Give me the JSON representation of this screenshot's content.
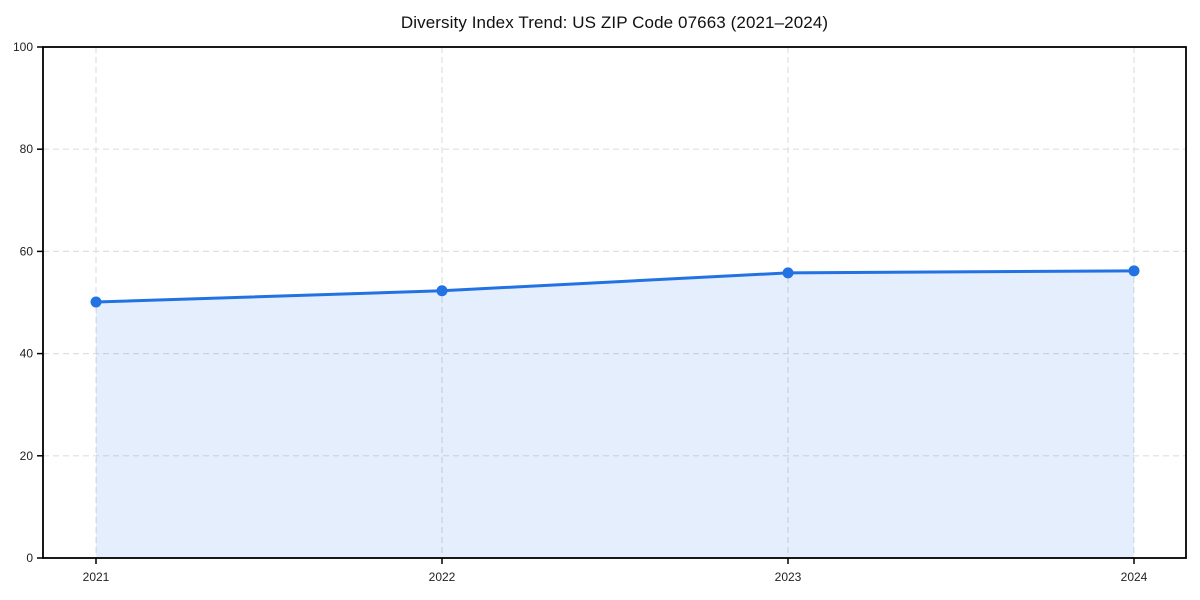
{
  "chart_data": {
    "type": "area",
    "title": "Diversity Index Trend: US ZIP Code 07663 (2021–2024)",
    "categories": [
      "2021",
      "2022",
      "2023",
      "2024"
    ],
    "series": [
      {
        "name": "Diversity Index",
        "values": [
          50.1,
          52.3,
          55.8,
          56.2
        ]
      }
    ],
    "xlabel": "",
    "ylabel": "",
    "ylim": [
      0,
      100
    ],
    "yticks": [
      0,
      20,
      40,
      60,
      80,
      100
    ],
    "grid": true,
    "grid_style": "dashed",
    "legend_position": "none",
    "colors": {
      "line": "#2272e3",
      "marker": "#2272e3",
      "fill": "rgba(34,114,227,0.12)",
      "grid": "#dfdfdf",
      "spine": "#000000",
      "tick_label": "#222222",
      "title": "#111111",
      "background": "#ffffff"
    }
  }
}
